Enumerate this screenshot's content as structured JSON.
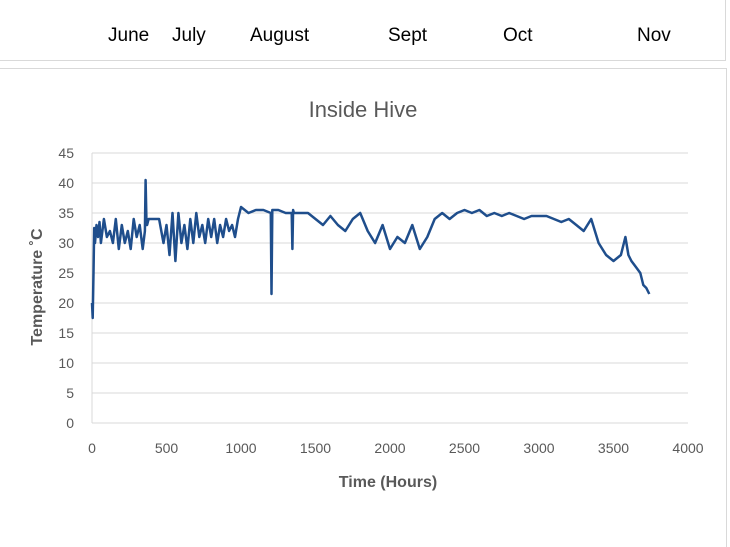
{
  "months": [
    "June",
    "July",
    "August",
    "Sept",
    "Oct",
    "Nov"
  ],
  "chart_data": {
    "type": "line",
    "title": "Inside Hive",
    "xlabel": "Time (Hours)",
    "ylabel": "Temperature ˚C",
    "xlim": [
      0,
      4000
    ],
    "ylim": [
      0,
      45
    ],
    "xticks": [
      0,
      500,
      1000,
      1500,
      2000,
      2500,
      3000,
      3500,
      4000
    ],
    "yticks": [
      0,
      5,
      10,
      15,
      20,
      25,
      30,
      35,
      40,
      45
    ],
    "grid": "horizontal",
    "line_color": "#1f4e8c",
    "series": [
      {
        "x": [
          0,
          5,
          10,
          15,
          20,
          30,
          40,
          50,
          60,
          80,
          100,
          120,
          140,
          160,
          180,
          200,
          220,
          240,
          260,
          280,
          300,
          320,
          340,
          355,
          360,
          365,
          370,
          380,
          400,
          450,
          480,
          500,
          520,
          540,
          560,
          580,
          600,
          620,
          640,
          660,
          680,
          700,
          720,
          740,
          760,
          780,
          800,
          820,
          840,
          860,
          880,
          900,
          920,
          940,
          960,
          980,
          1000,
          1050,
          1100,
          1150,
          1200,
          1205,
          1210,
          1215,
          1250,
          1300,
          1340,
          1345,
          1350,
          1355,
          1400,
          1450,
          1500,
          1550,
          1600,
          1650,
          1700,
          1750,
          1800,
          1850,
          1900,
          1950,
          2000,
          2050,
          2100,
          2150,
          2200,
          2250,
          2300,
          2350,
          2400,
          2450,
          2500,
          2550,
          2600,
          2650,
          2700,
          2750,
          2800,
          2850,
          2900,
          2950,
          3000,
          3050,
          3100,
          3150,
          3200,
          3250,
          3300,
          3350,
          3400,
          3450,
          3500,
          3550,
          3580,
          3600,
          3620,
          3650,
          3680,
          3700,
          3720,
          3740
        ],
        "y": [
          20,
          17.5,
          25,
          32.5,
          30,
          33,
          31,
          33.5,
          30,
          34,
          31,
          32,
          30,
          34,
          29,
          33,
          30,
          32,
          29,
          34,
          31,
          33,
          29,
          32,
          40.5,
          34,
          33,
          34,
          34,
          34,
          30,
          33,
          28,
          35,
          27,
          35,
          30,
          33,
          29,
          34,
          30,
          35,
          31,
          33,
          30,
          34,
          31,
          34,
          30,
          33,
          31,
          34,
          32,
          33,
          31,
          34,
          36,
          35,
          35.5,
          35.5,
          35,
          21.5,
          35.5,
          35.5,
          35.5,
          35,
          35,
          29,
          35.5,
          35,
          35,
          35,
          34,
          33,
          34.5,
          33,
          32,
          34,
          35,
          32,
          30,
          33,
          29,
          31,
          30,
          33,
          29,
          31,
          34,
          35,
          34,
          35,
          35.5,
          35,
          35.5,
          34.5,
          35,
          34.5,
          35,
          34.5,
          34,
          34.5,
          34.5,
          34.5,
          34,
          33.5,
          34,
          33,
          32,
          34,
          30,
          28,
          27,
          28,
          31,
          28,
          27,
          26,
          25,
          23,
          22.5,
          21.5
        ]
      }
    ]
  }
}
